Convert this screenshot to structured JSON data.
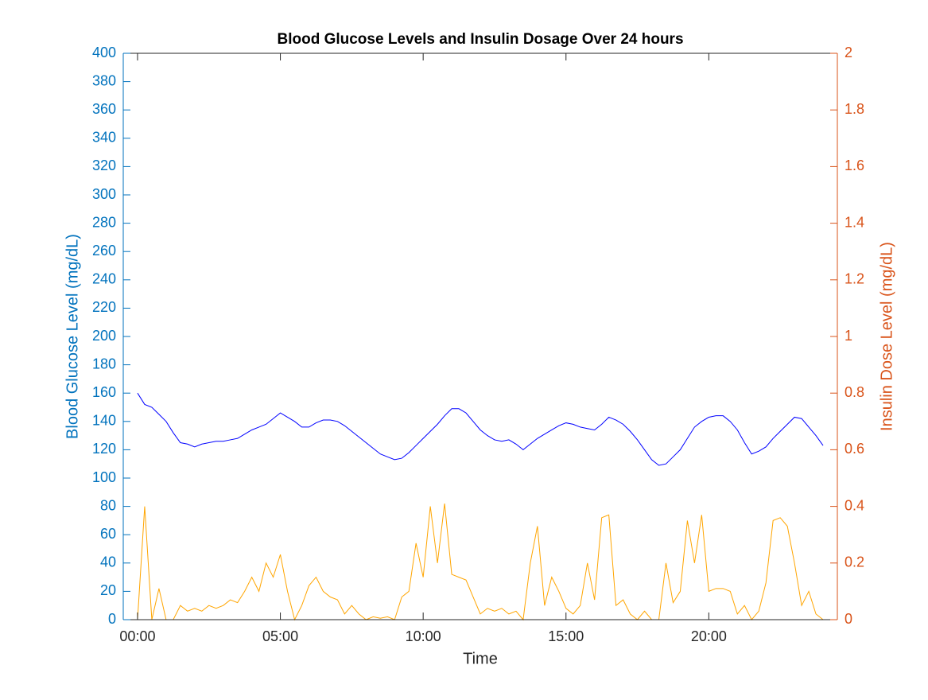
{
  "chart_data": {
    "type": "line",
    "title": "Blood Glucose Levels and Insulin Dosage Over 24 hours",
    "x_label": "Time",
    "y_label": "Blood Glucose Level (mg/dL)",
    "y2_label": "Insulin Dose Level (mg/dL)",
    "x": [
      0,
      0.25,
      0.5,
      0.75,
      1,
      1.25,
      1.5,
      1.75,
      2,
      2.25,
      2.5,
      2.75,
      3,
      3.25,
      3.5,
      3.75,
      4,
      4.25,
      4.5,
      4.75,
      5,
      5.25,
      5.5,
      5.75,
      6,
      6.25,
      6.5,
      6.75,
      7,
      7.25,
      7.5,
      7.75,
      8,
      8.25,
      8.5,
      8.75,
      9,
      9.25,
      9.5,
      9.75,
      10,
      10.25,
      10.5,
      10.75,
      11,
      11.25,
      11.5,
      11.75,
      12,
      12.25,
      12.5,
      12.75,
      13,
      13.25,
      13.5,
      13.75,
      14,
      14.25,
      14.5,
      14.75,
      15,
      15.25,
      15.5,
      15.75,
      16,
      16.25,
      16.5,
      16.75,
      17,
      17.25,
      17.5,
      17.75,
      18,
      18.25,
      18.5,
      18.75,
      19,
      19.25,
      19.5,
      19.75,
      20,
      20.25,
      20.5,
      20.75,
      21,
      21.25,
      21.5,
      21.75,
      22,
      22.25,
      22.5,
      22.75,
      23,
      23.25,
      23.5,
      23.75,
      24
    ],
    "xlim": [
      -0.5,
      24.5
    ],
    "xticks": [
      {
        "value": 0,
        "label": "00:00"
      },
      {
        "value": 5,
        "label": "05:00"
      },
      {
        "value": 10,
        "label": "10:00"
      },
      {
        "value": 15,
        "label": "15:00"
      },
      {
        "value": 20,
        "label": "20:00"
      }
    ],
    "ylim": [
      0,
      400
    ],
    "yticks": [
      0,
      20,
      40,
      60,
      80,
      100,
      120,
      140,
      160,
      180,
      200,
      220,
      240,
      260,
      280,
      300,
      320,
      340,
      360,
      380,
      400
    ],
    "y2lim": [
      0,
      2
    ],
    "y2ticks": [
      0,
      0.2,
      0.4,
      0.6,
      0.8,
      1,
      1.2,
      1.4,
      1.6,
      1.8,
      2
    ],
    "y_color": "#0072bd",
    "y2_color": "#d95319",
    "series": [
      {
        "name": "Blood Glucose",
        "color": "#0000ff",
        "values": [
          160,
          152,
          150,
          145,
          140,
          132,
          125,
          124,
          122,
          124,
          125,
          126,
          126,
          127,
          128,
          131,
          134,
          136,
          138,
          142,
          146,
          143,
          140,
          136,
          136,
          139,
          141,
          141,
          140,
          137,
          133,
          129,
          125,
          121,
          117,
          115,
          113,
          114,
          118,
          123,
          128,
          133,
          138,
          144,
          149,
          149,
          146,
          140,
          134,
          130,
          127,
          126,
          127,
          124,
          120,
          124,
          128,
          131,
          134,
          137,
          139,
          138,
          136,
          135,
          134,
          138,
          143,
          141,
          138,
          133,
          127,
          120,
          113,
          109,
          110,
          115,
          120,
          128,
          136,
          140,
          143,
          144,
          144,
          140,
          134,
          125,
          117,
          119,
          122,
          128,
          133,
          138,
          143,
          142,
          136,
          130,
          123
        ]
      },
      {
        "name": "Insulin Dose",
        "color": "#ffa500",
        "axis": "y2",
        "values": [
          0,
          0.4,
          0,
          0.11,
          0,
          0,
          0.05,
          0.03,
          0.04,
          0.03,
          0.05,
          0.04,
          0.05,
          0.07,
          0.06,
          0.1,
          0.15,
          0.1,
          0.2,
          0.15,
          0.23,
          0.1,
          0,
          0.05,
          0.12,
          0.15,
          0.1,
          0.08,
          0.07,
          0.02,
          0.05,
          0.02,
          0,
          0.01,
          0.005,
          0.01,
          0,
          0.08,
          0.1,
          0.27,
          0.15,
          0.4,
          0.2,
          0.41,
          0.16,
          0.15,
          0.14,
          0.08,
          0.02,
          0.04,
          0.03,
          0.04,
          0.02,
          0.03,
          0,
          0.2,
          0.33,
          0.05,
          0.15,
          0.1,
          0.04,
          0.02,
          0.05,
          0.2,
          0.07,
          0.36,
          0.37,
          0.05,
          0.07,
          0.02,
          0,
          0.03,
          0,
          0,
          0.2,
          0.06,
          0.1,
          0.35,
          0.2,
          0.37,
          0.1,
          0.11,
          0.11,
          0.1,
          0.02,
          0.05,
          0,
          0.03,
          0.13,
          0.35,
          0.36,
          0.33,
          0.2,
          0.05,
          0.1,
          0.02,
          0
        ]
      }
    ]
  }
}
